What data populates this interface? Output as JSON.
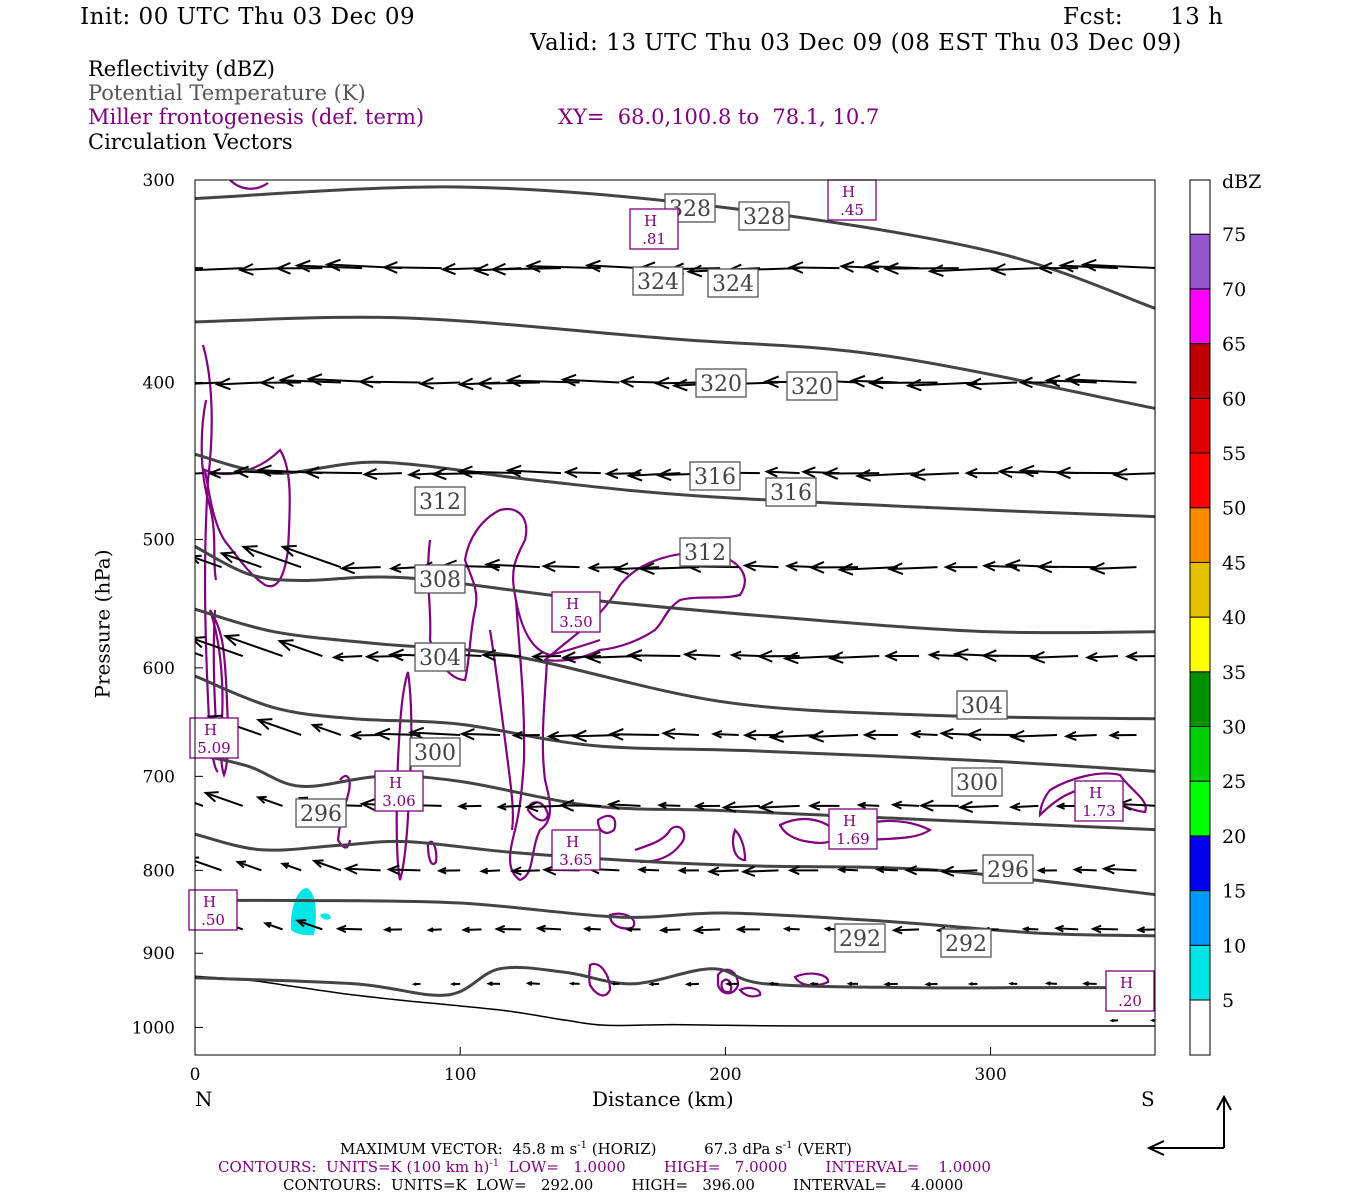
{
  "header": {
    "init": "Init: 00 UTC Thu 03 Dec 09",
    "fcst_label": "Fcst:",
    "fcst_value": "13 h",
    "valid": "Valid: 13 UTC Thu 03 Dec 09 (08 EST Thu 03 Dec 09)"
  },
  "legend": {
    "reflectivity": "Reflectivity (dBZ)",
    "theta": "Potential Temperature (K)",
    "frontogenesis": "Miller frontogenesis (def. term)",
    "xy": "XY=  68.0,100.8 to  78.1, 10.7",
    "vectors": "Circulation Vectors"
  },
  "colors": {
    "theta_line": "#444444",
    "frontogenesis": "#800080",
    "vector": "#000000",
    "reflectivity_echo": "#00e5e5"
  },
  "chart_data": {
    "type": "cross-section",
    "xlabel": "Distance (km)",
    "ylabel": "Pressure (hPa)",
    "x_ticks": [
      0,
      100,
      200,
      300
    ],
    "y_ticks": [
      300,
      400,
      500,
      600,
      700,
      800,
      900,
      1000
    ],
    "xlim": [
      0,
      362
    ],
    "ylim": [
      1040,
      300
    ],
    "y_scale": "log",
    "end_labels": {
      "left": "N",
      "right": "S"
    },
    "theta_contours": [
      {
        "label": "328",
        "points": [
          [
            0,
            308
          ],
          [
            100,
            303
          ],
          [
            200,
            312
          ],
          [
            300,
            332
          ],
          [
            362,
            360
          ]
        ]
      },
      {
        "label": "324",
        "points": [
          [
            0,
            367
          ],
          [
            80,
            365
          ],
          [
            180,
            376
          ],
          [
            260,
            385
          ],
          [
            362,
            415
          ]
        ]
      },
      {
        "label": "320",
        "points": [
          [
            0,
            443
          ],
          [
            30,
            455
          ],
          [
            70,
            448
          ],
          [
            130,
            460
          ],
          [
            190,
            470
          ],
          [
            280,
            478
          ],
          [
            362,
            484
          ]
        ]
      },
      {
        "label": "316",
        "points": [
          [
            0,
            505
          ],
          [
            20,
            525
          ],
          [
            40,
            530
          ],
          [
            80,
            528
          ],
          [
            150,
            545
          ],
          [
            230,
            560
          ],
          [
            300,
            570
          ],
          [
            362,
            570
          ]
        ]
      },
      {
        "label": "312",
        "points": [
          [
            0,
            552
          ],
          [
            30,
            570
          ],
          [
            70,
            580
          ],
          [
            120,
            590
          ],
          [
            200,
            630
          ],
          [
            280,
            642
          ],
          [
            362,
            645
          ]
        ]
      },
      {
        "label": "308",
        "points": [
          [
            0,
            607
          ],
          [
            30,
            635
          ],
          [
            60,
            645
          ],
          [
            100,
            650
          ],
          [
            150,
            670
          ],
          [
            210,
            675
          ],
          [
            300,
            685
          ],
          [
            362,
            695
          ]
        ]
      },
      {
        "label": "304",
        "points": [
          [
            0,
            678
          ],
          [
            20,
            690
          ],
          [
            40,
            710
          ],
          [
            70,
            700
          ],
          [
            100,
            705
          ],
          [
            150,
            730
          ],
          [
            200,
            735
          ],
          [
            280,
            745
          ],
          [
            362,
            755
          ]
        ]
      },
      {
        "label": "300",
        "points": [
          [
            0,
            760
          ],
          [
            25,
            777
          ],
          [
            55,
            772
          ],
          [
            80,
            768
          ],
          [
            120,
            780
          ],
          [
            170,
            790
          ],
          [
            210,
            795
          ],
          [
            280,
            800
          ],
          [
            362,
            828
          ]
        ]
      },
      {
        "label": "296",
        "points": [
          [
            0,
            835
          ],
          [
            40,
            835
          ],
          [
            100,
            838
          ],
          [
            160,
            855
          ],
          [
            200,
            850
          ],
          [
            260,
            860
          ],
          [
            320,
            875
          ],
          [
            362,
            878
          ]
        ]
      },
      {
        "label": "292",
        "points": [
          [
            0,
            932
          ],
          [
            60,
            940
          ],
          [
            95,
            955
          ],
          [
            115,
            920
          ],
          [
            140,
            925
          ],
          [
            165,
            940
          ],
          [
            195,
            920
          ],
          [
            215,
            940
          ],
          [
            270,
            945
          ],
          [
            320,
            945
          ],
          [
            362,
            945
          ]
        ]
      }
    ],
    "theta_labels": [
      "328",
      "328",
      "324",
      "324",
      "320",
      "320",
      "316",
      "316",
      "312",
      "312",
      "308",
      "304",
      "304",
      "300",
      "300",
      "296",
      "296",
      "292",
      "292"
    ],
    "frontogenesis_maxima": [
      {
        "label": "H",
        "value": ".81"
      },
      {
        "label": "H",
        "value": ".45"
      },
      {
        "label": "H",
        "value": "3.50"
      },
      {
        "label": "H",
        "value": "5.09"
      },
      {
        "label": "H",
        "value": "3.06"
      },
      {
        "label": "H",
        "value": "3.65"
      },
      {
        "label": "H",
        "value": "1.69"
      },
      {
        "label": "H",
        "value": "1.73"
      },
      {
        "label": "H",
        "value": ".50"
      },
      {
        "label": "H",
        "value": ".20"
      }
    ],
    "colorbar": {
      "unit": "dBZ",
      "levels": [
        5,
        10,
        15,
        20,
        25,
        30,
        35,
        40,
        45,
        50,
        55,
        60,
        65,
        70,
        75
      ],
      "colors": [
        "#00e5e5",
        "#0099ff",
        "#0000ee",
        "#00ff00",
        "#00d000",
        "#009000",
        "#ffff00",
        "#e5c000",
        "#ff8c00",
        "#ff0000",
        "#dd0000",
        "#c00000",
        "#ff00ff",
        "#9955cc",
        "#ffffff"
      ]
    }
  },
  "footer": {
    "max_vector": "MAXIMUM VECTOR:  45.8 m s",
    "max_vector_sup": "-1",
    "max_vector_mid": " (HORIZ)          67.3 dPa s",
    "max_vector_end": " (VERT)",
    "contours_fg": "CONTOURS:  UNITS=K (100 km h)",
    "contours_fg_end": "  LOW=   1.0000        HIGH=   7.0000        INTERVAL=    1.0000",
    "contours_theta": "CONTOURS:  UNITS=K  LOW=   292.00        HIGH=   396.00        INTERVAL=     4.0000"
  }
}
